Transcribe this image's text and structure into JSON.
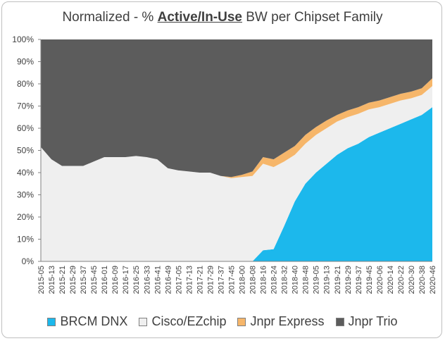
{
  "chart_data": {
    "type": "area",
    "stacked": true,
    "title": {
      "prefix": "Normalized - % ",
      "emphasis": "Active/In-Use",
      "suffix": " BW per Chipset Family"
    },
    "xlabel": "",
    "ylabel": "",
    "ylim": [
      0,
      100
    ],
    "y_ticks": [
      "0%",
      "10%",
      "20%",
      "30%",
      "40%",
      "50%",
      "60%",
      "70%",
      "80%",
      "90%",
      "100%"
    ],
    "x_start": "2015-05",
    "x_end": "2020-46",
    "x_tick_labels": [
      "2015-05",
      "2015-13",
      "2015-21",
      "2015-29",
      "2015-37",
      "2015-45",
      "2016-01",
      "2016-09",
      "2016-17",
      "2016-25",
      "2016-33",
      "2016-41",
      "2016-49",
      "2017-05",
      "2017-13",
      "2017-21",
      "2017-29",
      "2017-37",
      "2017-45",
      "2018-00",
      "2018-08",
      "2018-16",
      "2018-24",
      "2018-32",
      "2018-40",
      "2018-48",
      "2019-05",
      "2019-13",
      "2019-21",
      "2019-29",
      "2019-37",
      "2019-45",
      "2020-06",
      "2020-14",
      "2020-22",
      "2020-30",
      "2020-38",
      "2020-46"
    ],
    "legend_position": "bottom",
    "series": [
      {
        "name": "BRCM DNX",
        "color": "#1cb8ec",
        "values": [
          0,
          0,
          0,
          0,
          0,
          0,
          0,
          0,
          0,
          0,
          0,
          0,
          0,
          0,
          0,
          0,
          0,
          0,
          0,
          0,
          0,
          5,
          5.5,
          16,
          27,
          35,
          40,
          44,
          48,
          51,
          53,
          56,
          58,
          60,
          62,
          64,
          66,
          69.5
        ]
      },
      {
        "name": "Cisco/EZchip",
        "color": "#efefef",
        "values": [
          51.5,
          46,
          43,
          43,
          43,
          45,
          47,
          47,
          47,
          47.5,
          47,
          46,
          42,
          41,
          40.5,
          40,
          40,
          38.5,
          37.5,
          38,
          38.5,
          39,
          37,
          29,
          21,
          18,
          17,
          16,
          15,
          14,
          13.5,
          12.5,
          11.5,
          11,
          10.5,
          9.5,
          9,
          9.5
        ]
      },
      {
        "name": "Jnpr Express",
        "color": "#f6b66a",
        "values": [
          0,
          0,
          0,
          0,
          0,
          0,
          0,
          0,
          0,
          0,
          0,
          0,
          0,
          0,
          0,
          0,
          0,
          0,
          0.5,
          1,
          2,
          3,
          3.5,
          4,
          4,
          4,
          3.5,
          3.5,
          3,
          3,
          3,
          3,
          3,
          3,
          3,
          3,
          3,
          3.5
        ]
      },
      {
        "name": "Jnpr Trio",
        "color": "#5c5c5c",
        "values": [
          48.5,
          54,
          57,
          57,
          57,
          55,
          53,
          53,
          53,
          52.5,
          53,
          54,
          58,
          59,
          59.5,
          60,
          60,
          61.5,
          62,
          61,
          59.5,
          53,
          54,
          51,
          48,
          43,
          39.5,
          36.5,
          34,
          32,
          30.5,
          28.5,
          27.5,
          26,
          24.5,
          23.5,
          22,
          17.5
        ]
      }
    ]
  }
}
